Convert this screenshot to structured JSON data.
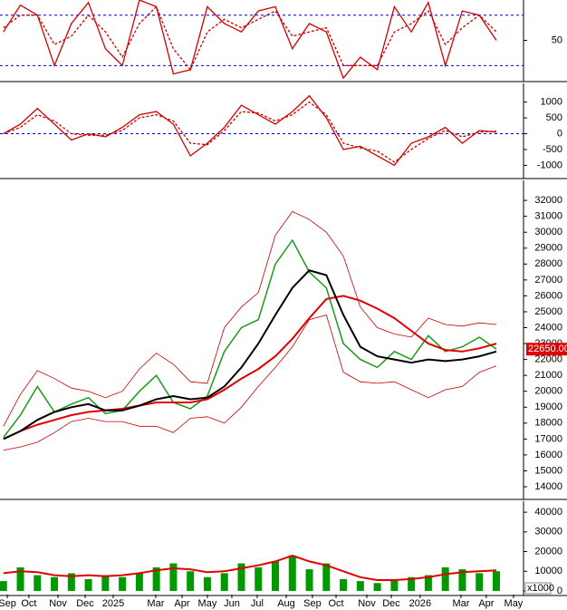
{
  "x_axis": {
    "xlim": [
      -0.2,
      30.6
    ],
    "xticks": [
      {
        "value": 0.23,
        "label": "Sep"
      },
      {
        "value": 1.5,
        "label": "Oct"
      },
      {
        "value": 3.21,
        "label": "Nov"
      },
      {
        "value": 4.81,
        "label": "Dec"
      },
      {
        "value": 6.46,
        "label": "2025"
      },
      {
        "value": 8.96,
        "label": "Mar"
      },
      {
        "value": 10.51,
        "label": "Apr"
      },
      {
        "value": 12.0,
        "label": "May"
      },
      {
        "value": 13.44,
        "label": "Jun"
      },
      {
        "value": 14.93,
        "label": "Jul"
      },
      {
        "value": 16.64,
        "label": "Aug"
      },
      {
        "value": 18.18,
        "label": "Sep"
      },
      {
        "value": 19.57,
        "label": "Oct"
      },
      {
        "value": 21.38,
        "label": "Nov"
      },
      {
        "value": 22.82,
        "label": "Dec"
      },
      {
        "value": 24.52,
        "label": "2026"
      },
      {
        "value": 26.92,
        "label": "Mar"
      },
      {
        "value": 28.41,
        "label": "Apr"
      },
      {
        "value": 30.01,
        "label": "May"
      }
    ]
  },
  "chart_data": [
    {
      "type": "line",
      "ylim": [
        2,
        98
      ],
      "yticks": [
        50
      ],
      "ref_lines": [
        80,
        20
      ],
      "series": [
        {
          "color": "#d00000",
          "values": [
            60,
            92,
            80,
            20,
            70,
            95,
            40,
            20,
            98,
            90,
            10,
            15,
            90,
            70,
            60,
            85,
            90,
            40,
            70,
            60,
            5,
            30,
            15,
            90,
            60,
            95,
            20,
            85,
            80,
            50
          ]
        },
        {
          "color": "#d00000",
          "dashed": true,
          "values": [
            65,
            80,
            80,
            45,
            55,
            80,
            60,
            30,
            70,
            90,
            40,
            15,
            60,
            75,
            65,
            75,
            85,
            55,
            60,
            65,
            20,
            20,
            20,
            60,
            70,
            85,
            45,
            65,
            80,
            60
          ]
        }
      ]
    },
    {
      "type": "line",
      "ylim": [
        -1390,
        1590
      ],
      "yticks": [
        1000,
        500,
        0,
        -500,
        -1000
      ],
      "ref_lines": [
        0
      ],
      "series": [
        {
          "color": "#d00000",
          "values": [
            0,
            300,
            800,
            300,
            -200,
            0,
            -100,
            200,
            600,
            700,
            300,
            -700,
            -300,
            200,
            900,
            600,
            300,
            700,
            1200,
            500,
            -500,
            -400,
            -700,
            -1000,
            -300,
            -100,
            200,
            -300,
            100,
            50
          ]
        },
        {
          "color": "#d00000",
          "dashed": true,
          "values": [
            0,
            200,
            600,
            400,
            0,
            -50,
            -50,
            100,
            500,
            600,
            400,
            -300,
            -350,
            100,
            700,
            650,
            400,
            600,
            1000,
            600,
            -300,
            -450,
            -550,
            -900,
            -500,
            -150,
            100,
            -100,
            50,
            80
          ]
        }
      ]
    },
    {
      "type": "line",
      "ylim": [
        13260,
        33260
      ],
      "yticks": [
        14000,
        15000,
        16000,
        17000,
        18000,
        19000,
        20000,
        21000,
        22000,
        23000,
        24000,
        25000,
        26000,
        27000,
        28000,
        29000,
        30000,
        31000,
        32000
      ],
      "last_price": {
        "value": 22650,
        "label": "22650.00"
      },
      "series": [
        {
          "color": "#c00000",
          "width": 0.8,
          "values": [
            17800,
            19800,
            21300,
            20800,
            20200,
            20000,
            19600,
            20000,
            21400,
            22400,
            21700,
            20600,
            20500,
            24000,
            25300,
            26200,
            29800,
            31300,
            30800,
            30000,
            28500,
            25300,
            24000,
            23600,
            23400,
            24600,
            24200,
            24100,
            24300,
            24200
          ]
        },
        {
          "color": "#c00000",
          "width": 0.8,
          "values": [
            16300,
            16500,
            16800,
            17400,
            18100,
            18300,
            18100,
            18100,
            17800,
            17800,
            17400,
            18300,
            18400,
            18000,
            19000,
            20300,
            21500,
            22800,
            24500,
            24800,
            21200,
            20600,
            20500,
            20600,
            20100,
            19600,
            20100,
            20300,
            21200,
            21600
          ]
        },
        {
          "color": "#1a9a1a",
          "width": 1.5,
          "values": [
            17100,
            18500,
            20300,
            18700,
            19200,
            19600,
            18600,
            18800,
            20000,
            21000,
            19300,
            18900,
            19700,
            22500,
            24000,
            24500,
            28000,
            29500,
            27500,
            26500,
            23000,
            22000,
            21500,
            22500,
            22000,
            23500,
            22500,
            22800,
            23400,
            22650
          ]
        },
        {
          "color": "#e00000",
          "width": 2,
          "values": [
            17000,
            17500,
            17900,
            18200,
            18500,
            18700,
            18800,
            18900,
            19100,
            19300,
            19300,
            19300,
            19500,
            20100,
            20800,
            21400,
            22200,
            23300,
            24600,
            25800,
            26000,
            25700,
            25200,
            24600,
            23800,
            23000,
            22600,
            22500,
            22700,
            23000
          ]
        },
        {
          "color": "#000000",
          "width": 2,
          "values": [
            17000,
            17500,
            18200,
            18700,
            19000,
            19200,
            18800,
            18800,
            19100,
            19500,
            19700,
            19500,
            19600,
            20300,
            21500,
            23000,
            24800,
            26500,
            27600,
            27300,
            24800,
            22800,
            22200,
            22000,
            21800,
            22000,
            21900,
            22000,
            22200,
            22500
          ]
        }
      ]
    },
    {
      "type": "bar",
      "ylim": [
        -1860,
        45580
      ],
      "yticks": [
        0,
        10000,
        20000,
        30000,
        40000
      ],
      "unit": "x1000",
      "series": [
        {
          "color": "#009900",
          "values": [
            5000,
            12000,
            8000,
            7000,
            9000,
            6000,
            8000,
            7000,
            9000,
            12000,
            14000,
            10000,
            7000,
            9000,
            14000,
            12000,
            15000,
            18000,
            11000,
            14000,
            6000,
            5000,
            4000,
            6000,
            7000,
            8000,
            12000,
            11000,
            9000,
            10000
          ]
        },
        {
          "type": "line",
          "color": "#e00000",
          "width": 2,
          "values": [
            9000,
            10000,
            9500,
            8000,
            7500,
            8000,
            7500,
            8000,
            9000,
            10500,
            11500,
            11000,
            9500,
            10000,
            11500,
            13000,
            15000,
            18000,
            15000,
            13000,
            10000,
            7000,
            5500,
            5500,
            6000,
            7000,
            8500,
            9500,
            10000,
            10500
          ]
        }
      ]
    }
  ]
}
